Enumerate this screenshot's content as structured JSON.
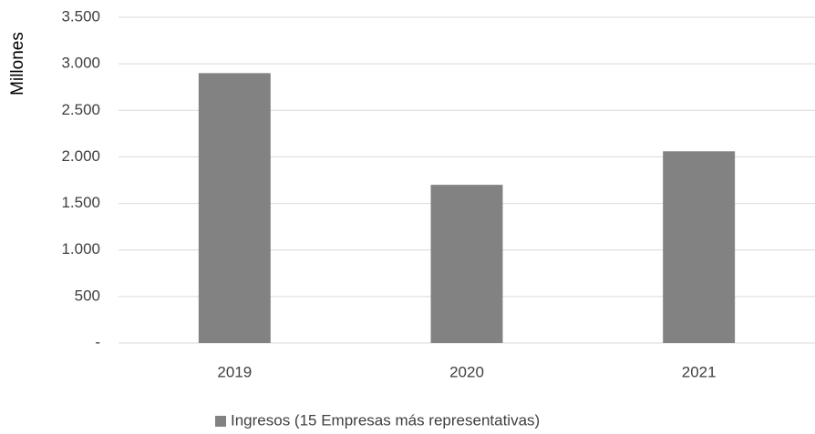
{
  "chart_data": {
    "type": "bar",
    "y_label": "Millones",
    "categories": [
      "2019",
      "2020",
      "2021"
    ],
    "series": [
      {
        "name": "Ingresos (15 Empresas más representativas)",
        "color": "#828282",
        "values": [
          2900,
          1700,
          2060
        ]
      }
    ],
    "ylim": [
      0,
      3500
    ],
    "yticks": [
      {
        "value": 0,
        "label": "-"
      },
      500,
      {
        "value": 1000,
        "label": "1.000"
      },
      {
        "value": 1500,
        "label": "1.500"
      },
      {
        "value": 2000,
        "label": "2.000"
      },
      {
        "value": 2500,
        "label": "2.500"
      },
      {
        "value": 3000,
        "label": "3.000"
      },
      {
        "value": 3500,
        "label": "3.500"
      }
    ],
    "grid": true,
    "legend": "bottom"
  }
}
